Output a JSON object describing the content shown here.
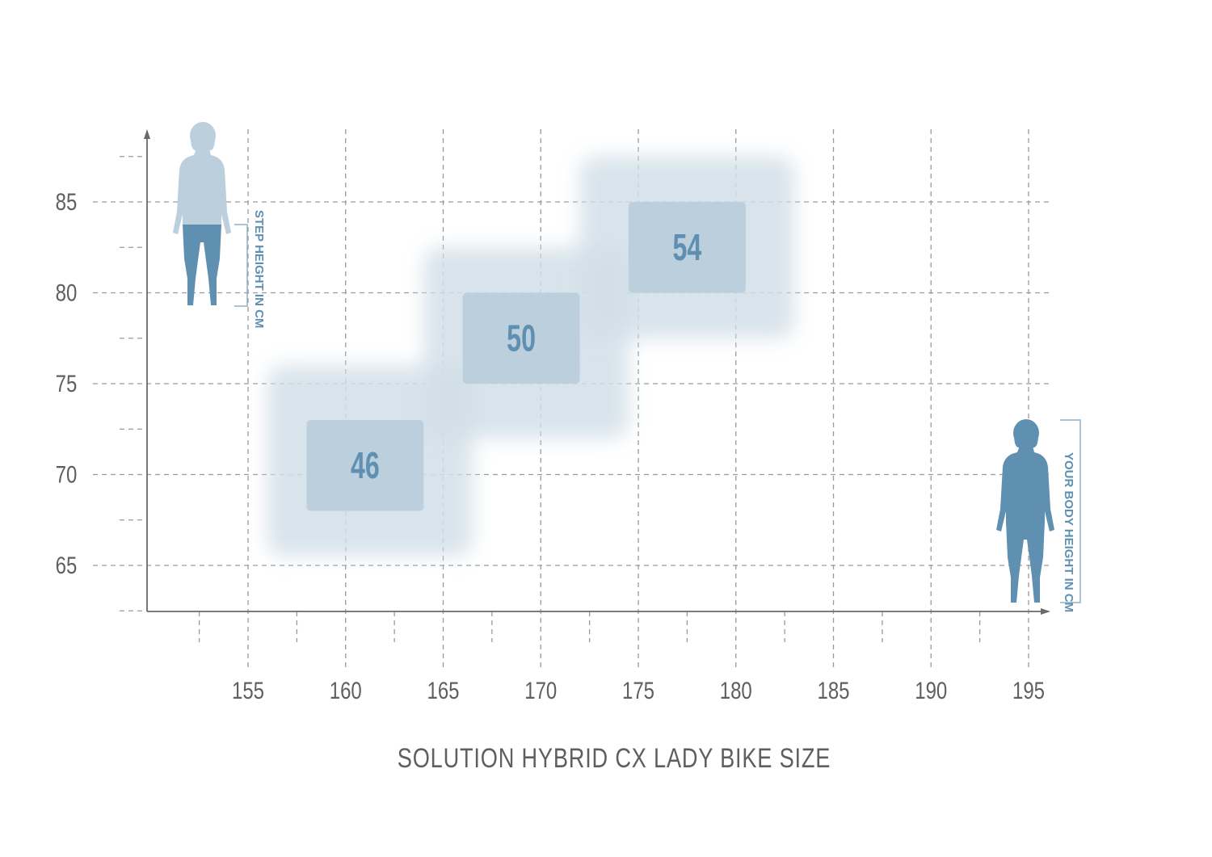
{
  "chart_data": {
    "type": "heatmap",
    "title": "SOLUTION HYBRID CX LADY BIKE SIZE",
    "xlabel": "YOUR BODY HEIGHT IN CM",
    "ylabel": "STEP HEIGHT IN CM",
    "x_ticks": [
      155,
      160,
      165,
      170,
      175,
      180,
      185,
      190,
      195
    ],
    "y_ticks": [
      65,
      70,
      75,
      80,
      85
    ],
    "xlim": [
      150,
      196
    ],
    "ylim": [
      62.5,
      88.5
    ],
    "grid": true,
    "sizes": [
      {
        "label": "46",
        "body_height": [
          158,
          164
        ],
        "step_height": [
          68,
          73
        ],
        "extended_body_height": [
          156,
          166.5
        ],
        "extended_step_height": [
          65.5,
          76
        ]
      },
      {
        "label": "50",
        "body_height": [
          166,
          172
        ],
        "step_height": [
          75,
          80
        ],
        "extended_body_height": [
          164,
          174.5
        ],
        "extended_step_height": [
          72,
          82.5
        ]
      },
      {
        "label": "54",
        "body_height": [
          174.5,
          180.5
        ],
        "step_height": [
          80,
          85
        ],
        "extended_body_height": [
          172,
          183
        ],
        "extended_step_height": [
          77.5,
          87.5
        ]
      }
    ],
    "colors": {
      "box": "#bccfdd",
      "box_halo": "#d2dfe8",
      "accent": "#5f8fb1",
      "figure_light": "#bccfdd",
      "text": "#5f5f5f",
      "grid": "#9a9a9a"
    }
  }
}
